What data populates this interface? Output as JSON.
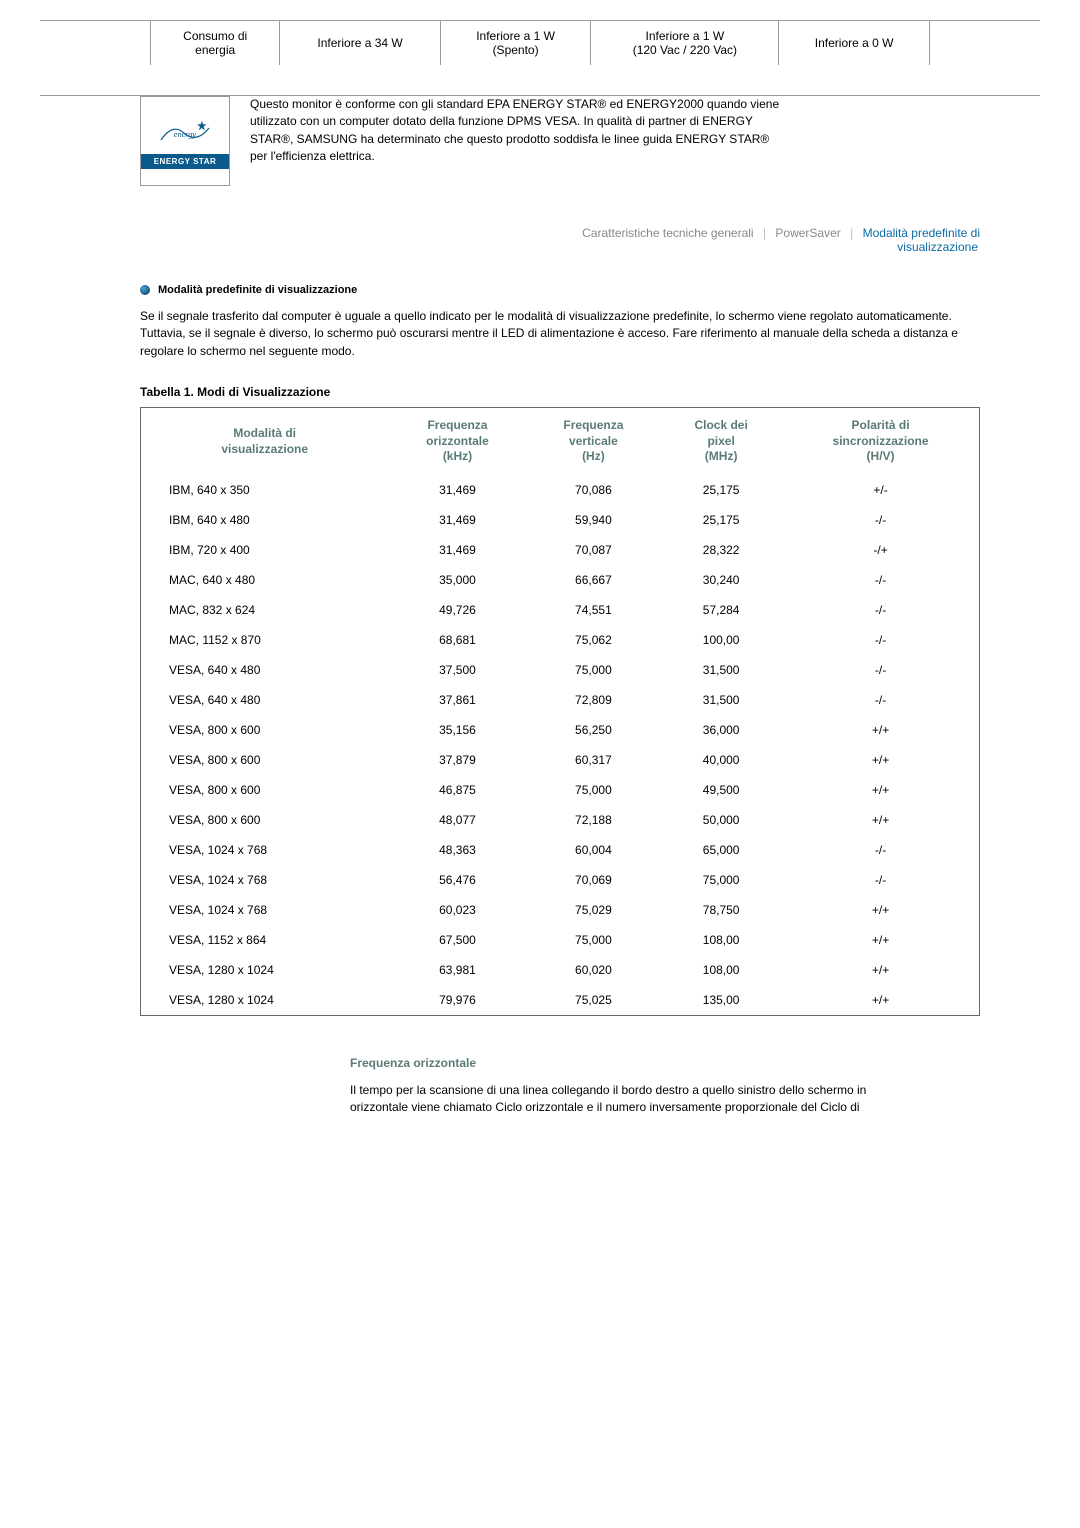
{
  "top": {
    "col1a": "Consumo di",
    "col1b": "energia",
    "col2": "Inferiore a 34 W",
    "col3a": "Inferiore a 1 W",
    "col3b": "(Spento)",
    "col4a": "Inferiore a 1 W",
    "col4b": "(120 Vac / 220 Vac)",
    "col5": "Inferiore a 0 W"
  },
  "energy_logo_label": "ENERGY STAR",
  "energy_paragraph": "Questo monitor è conforme con gli standard EPA ENERGY STAR® ed ENERGY2000 quando viene utilizzato con un computer dotato della funzione DPMS VESA. In qualità di partner di ENERGY STAR®, SAMSUNG ha determinato che questo prodotto soddisfa le linee guida ENERGY STAR® per l'efficienza elettrica.",
  "nav": {
    "l1": "Caratteristiche tecniche generali",
    "l2": "PowerSaver",
    "l3": "Modalità predefinite di",
    "l3b": "visualizzazione"
  },
  "section_title": "Modalità predefinite di visualizzazione",
  "section_para": "Se il segnale trasferito dal computer è uguale a quello indicato per le modalità di visualizzazione predefinite, lo schermo viene regolato automaticamente. Tuttavia, se il segnale è diverso, lo schermo può oscurarsi mentre il LED di alimentazione è acceso. Fare riferimento al manuale della scheda a distanza e regolare lo schermo nel seguente modo.",
  "table_title": "Tabella 1. Modi di Visualizzazione",
  "headers": {
    "h1a": "Modalità di",
    "h1b": "visualizzazione",
    "h2a": "Frequenza",
    "h2b": "orizzontale",
    "h2c": "(kHz)",
    "h3a": "Frequenza",
    "h3b": "verticale",
    "h3c": "(Hz)",
    "h4a": "Clock dei",
    "h4b": "pixel",
    "h4c": "(MHz)",
    "h5a": "Polarità di",
    "h5b": "sincronizzazione",
    "h5c": "(H/V)"
  },
  "rows": [
    {
      "m": "IBM, 640 x 350",
      "a": "31,469",
      "b": "70,086",
      "c": "25,175",
      "d": "+/-"
    },
    {
      "m": "IBM, 640 x 480",
      "a": "31,469",
      "b": "59,940",
      "c": "25,175",
      "d": "-/-"
    },
    {
      "m": "IBM, 720 x 400",
      "a": "31,469",
      "b": "70,087",
      "c": "28,322",
      "d": "-/+"
    },
    {
      "m": "MAC, 640 x 480",
      "a": "35,000",
      "b": "66,667",
      "c": "30,240",
      "d": "-/-"
    },
    {
      "m": "MAC, 832 x 624",
      "a": "49,726",
      "b": "74,551",
      "c": "57,284",
      "d": "-/-"
    },
    {
      "m": "MAC, 1152 x 870",
      "a": "68,681",
      "b": "75,062",
      "c": "100,00",
      "d": "-/-"
    },
    {
      "m": "VESA, 640 x 480",
      "a": "37,500",
      "b": "75,000",
      "c": "31,500",
      "d": "-/-"
    },
    {
      "m": "VESA, 640 x 480",
      "a": "37,861",
      "b": "72,809",
      "c": "31,500",
      "d": "-/-"
    },
    {
      "m": "VESA, 800 x 600",
      "a": "35,156",
      "b": "56,250",
      "c": "36,000",
      "d": "+/+"
    },
    {
      "m": "VESA, 800 x 600",
      "a": "37,879",
      "b": "60,317",
      "c": "40,000",
      "d": "+/+"
    },
    {
      "m": "VESA, 800 x 600",
      "a": "46,875",
      "b": "75,000",
      "c": "49,500",
      "d": "+/+"
    },
    {
      "m": "VESA, 800 x 600",
      "a": "48,077",
      "b": "72,188",
      "c": "50,000",
      "d": "+/+"
    },
    {
      "m": "VESA, 1024 x 768",
      "a": "48,363",
      "b": "60,004",
      "c": "65,000",
      "d": "-/-"
    },
    {
      "m": "VESA, 1024 x 768",
      "a": "56,476",
      "b": "70,069",
      "c": "75,000",
      "d": "-/-"
    },
    {
      "m": "VESA, 1024 x 768",
      "a": "60,023",
      "b": "75,029",
      "c": "78,750",
      "d": "+/+"
    },
    {
      "m": "VESA, 1152 x 864",
      "a": "67,500",
      "b": "75,000",
      "c": "108,00",
      "d": "+/+"
    },
    {
      "m": "VESA, 1280 x 1024",
      "a": "63,981",
      "b": "60,020",
      "c": "108,00",
      "d": "+/+"
    },
    {
      "m": "VESA, 1280 x 1024",
      "a": "79,976",
      "b": "75,025",
      "c": "135,00",
      "d": "+/+"
    }
  ],
  "foot_title": "Frequenza orizzontale",
  "foot_text": "Il tempo per la scansione di una linea collegando il bordo destro a quello sinistro dello schermo in orizzontale viene chiamato Ciclo orizzontale e il numero inversamente proporzionale del Ciclo di"
}
